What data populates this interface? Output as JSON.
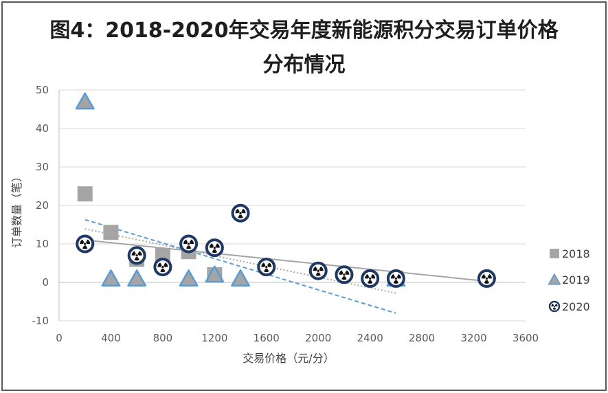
{
  "chart_data": {
    "type": "scatter",
    "title": [
      "图4：2018-2020年交易年度新能源积分交易订单价格",
      "分布情况"
    ],
    "xlabel": "交易价格（元/分）",
    "ylabel": "订单数量（笔）",
    "xlim": [
      0,
      3600
    ],
    "ylim": [
      -10,
      50
    ],
    "xticks": [
      0,
      400,
      800,
      1200,
      1600,
      2000,
      2400,
      2800,
      3200,
      3600
    ],
    "yticks": [
      50,
      40,
      30,
      20,
      10,
      0,
      -10
    ],
    "grid": true,
    "legend_position": "right",
    "series": [
      {
        "name": "2018",
        "marker": "square",
        "fill": "#a5a5a5",
        "stroke": "#a5a5a5",
        "x": [
          200,
          400,
          600,
          800,
          1000,
          1200,
          2600
        ],
        "y": [
          23,
          13,
          6,
          7,
          8,
          2,
          1
        ],
        "trendline": {
          "style": "dotted",
          "color": "#a5a5a5",
          "x": [
            200,
            2600
          ],
          "y": [
            13.9,
            -2.8
          ]
        }
      },
      {
        "name": "2019",
        "marker": "triangle",
        "fill": "#a5a5a5",
        "stroke": "#5b9bd5",
        "x": [
          200,
          400,
          600,
          1000,
          1200,
          1400,
          2600
        ],
        "y": [
          47,
          1,
          1,
          1,
          2,
          1,
          1
        ],
        "trendline": {
          "style": "dashed",
          "color": "#5b9bd5",
          "x": [
            200,
            2600
          ],
          "y": [
            16.3,
            -8.0
          ]
        }
      },
      {
        "name": "2020",
        "marker": "radiation-circle",
        "fill": "#ffffff",
        "stroke": "#1f3864",
        "x": [
          200,
          600,
          800,
          1000,
          1200,
          1400,
          1600,
          2000,
          2200,
          2400,
          2600,
          3300
        ],
        "y": [
          10,
          7,
          4,
          10,
          9,
          18,
          4,
          3,
          2,
          1,
          1,
          1
        ],
        "trendline": {
          "style": "solid",
          "color": "#a5a5a5",
          "x": [
            200,
            3300
          ],
          "y": [
            11.0,
            0.3
          ]
        }
      }
    ]
  }
}
